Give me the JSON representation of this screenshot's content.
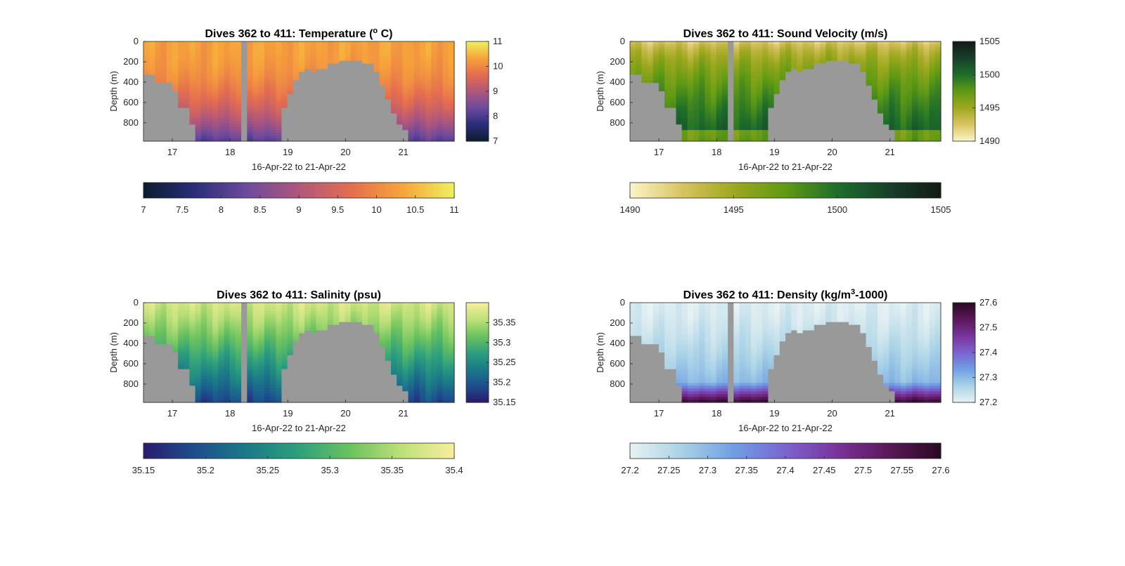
{
  "panels": [
    {
      "title_main": "Dives 362 to 411: Temperature (",
      "title_sup": "o",
      "title_tail": " C)",
      "ylabel": "Depth (m)",
      "xlabel": "16-Apr-22 to 21-Apr-22",
      "colormap": [
        "#0b1d2e",
        "#2b2d7a",
        "#6d4a9d",
        "#b0577b",
        "#e46d4f",
        "#f7a43a",
        "#eef15e"
      ],
      "clim": [
        7,
        11
      ],
      "vcb_ticks": [
        "7",
        "8",
        "9",
        "10",
        "11"
      ],
      "hcb_ticks": [
        "7",
        "7.5",
        "8",
        "8.5",
        "9",
        "9.5",
        "10",
        "10.5",
        "11"
      ],
      "shade": "temp"
    },
    {
      "title_main": "Dives 362 to 411: Sound Velocity (m/s)",
      "title_sup": "",
      "title_tail": "",
      "ylabel": "Depth (m)",
      "xlabel": "16-Apr-22 to 21-Apr-22",
      "colormap": [
        "#fbf5c8",
        "#d9c362",
        "#9ea81e",
        "#5f9a14",
        "#1e6e2a",
        "#17402a",
        "#131a14"
      ],
      "clim": [
        1490,
        1505
      ],
      "vcb_ticks": [
        "1490",
        "1495",
        "1500",
        "1505"
      ],
      "hcb_ticks": [
        "1490",
        "1495",
        "1500",
        "1505"
      ],
      "shade": "sound"
    },
    {
      "title_main": "Dives 362 to 411: Salinity (psu)",
      "title_sup": "",
      "title_tail": "",
      "ylabel": "Depth (m)",
      "xlabel": "16-Apr-22 to 21-Apr-22",
      "colormap": [
        "#2a1b6e",
        "#1d4f8e",
        "#1b7a88",
        "#2ea07c",
        "#6cc35e",
        "#bfe07a",
        "#f8ef9d"
      ],
      "clim": [
        35.15,
        35.4
      ],
      "vcb_ticks": [
        "35.15",
        "35.2",
        "35.25",
        "35.3",
        "35.35"
      ],
      "hcb_ticks": [
        "35.15",
        "35.2",
        "35.25",
        "35.3",
        "35.35",
        "35.4"
      ],
      "shade": "sal"
    },
    {
      "title_main": "Dives 362 to 411: Density (kg/m",
      "title_sup": "3",
      "title_tail": "-1000)",
      "ylabel": "Depth (m)",
      "xlabel": "16-Apr-22 to 21-Apr-22",
      "colormap": [
        "#e7f2f3",
        "#a9d2e6",
        "#6f9fe3",
        "#7b63cf",
        "#7a349b",
        "#5a1858",
        "#2a0a22"
      ],
      "clim": [
        27.2,
        27.6
      ],
      "vcb_ticks": [
        "27.2",
        "27.3",
        "27.4",
        "27.5",
        "27.6"
      ],
      "hcb_ticks": [
        "27.2",
        "27.25",
        "27.3",
        "27.35",
        "27.4",
        "27.45",
        "27.5",
        "27.55",
        "27.6"
      ],
      "shade": "dens"
    }
  ],
  "chart_data": [
    {
      "type": "heatmap",
      "title": "Dives 362 to 411: Temperature (o C)",
      "xlabel": "16-Apr-22 to 21-Apr-22",
      "ylabel": "Depth (m)",
      "x_ticks": [
        "17",
        "18",
        "19",
        "20",
        "21"
      ],
      "xlim": [
        16.5,
        21.88
      ],
      "y_ticks": [
        "0",
        "200",
        "400",
        "600",
        "800"
      ],
      "ylim": [
        0,
        980
      ],
      "y_reversed": true,
      "color_range": [
        7,
        11
      ],
      "colorbar_ticks": [
        "7",
        "7.5",
        "8",
        "8.5",
        "9",
        "9.5",
        "10",
        "10.5",
        "11"
      ],
      "value_profile": {
        "depth": [
          0,
          200,
          400,
          600,
          800,
          980
        ],
        "value": [
          10.3,
          10.2,
          10.0,
          9.6,
          8.8,
          7.9
        ]
      }
    },
    {
      "type": "heatmap",
      "title": "Dives 362 to 411: Sound Velocity (m/s)",
      "xlabel": "16-Apr-22 to 21-Apr-22",
      "ylabel": "Depth (m)",
      "x_ticks": [
        "17",
        "18",
        "19",
        "20",
        "21"
      ],
      "xlim": [
        16.5,
        21.88
      ],
      "y_ticks": [
        "0",
        "200",
        "400",
        "600",
        "800"
      ],
      "ylim": [
        0,
        980
      ],
      "y_reversed": true,
      "color_range": [
        1490,
        1505
      ],
      "colorbar_ticks": [
        "1490",
        "1495",
        "1500",
        "1505"
      ],
      "value_profile": {
        "depth": [
          0,
          200,
          400,
          600,
          800,
          980
        ],
        "value": [
          1491.5,
          1495.0,
          1497.5,
          1500.0,
          1501.0,
          1497.5
        ]
      }
    },
    {
      "type": "heatmap",
      "title": "Dives 362 to 411: Salinity (psu)",
      "xlabel": "16-Apr-22 to 21-Apr-22",
      "ylabel": "Depth (m)",
      "x_ticks": [
        "17",
        "18",
        "19",
        "20",
        "21"
      ],
      "xlim": [
        16.5,
        21.88
      ],
      "y_ticks": [
        "0",
        "200",
        "400",
        "600",
        "800"
      ],
      "ylim": [
        0,
        980
      ],
      "y_reversed": true,
      "color_range": [
        35.15,
        35.4
      ],
      "colorbar_ticks": [
        "35.15",
        "35.2",
        "35.25",
        "35.3",
        "35.35",
        "35.4"
      ],
      "value_profile": {
        "depth": [
          0,
          200,
          400,
          600,
          800,
          980
        ],
        "value": [
          35.37,
          35.35,
          35.32,
          35.28,
          35.23,
          35.18
        ]
      }
    },
    {
      "type": "heatmap",
      "title": "Dives 362 to 411: Density (kg/m3-1000)",
      "xlabel": "16-Apr-22 to 21-Apr-22",
      "ylabel": "Depth (m)",
      "x_ticks": [
        "17",
        "18",
        "19",
        "20",
        "21"
      ],
      "xlim": [
        16.5,
        21.88
      ],
      "y_ticks": [
        "0",
        "200",
        "400",
        "600",
        "800"
      ],
      "ylim": [
        0,
        980
      ],
      "y_reversed": true,
      "color_range": [
        27.2,
        27.6
      ],
      "colorbar_ticks": [
        "27.2",
        "27.25",
        "27.3",
        "27.35",
        "27.4",
        "27.45",
        "27.5",
        "27.55",
        "27.6"
      ],
      "value_profile": {
        "depth": [
          0,
          200,
          400,
          600,
          800,
          980
        ],
        "value": [
          27.21,
          27.23,
          27.26,
          27.3,
          27.38,
          27.5
        ]
      }
    }
  ]
}
